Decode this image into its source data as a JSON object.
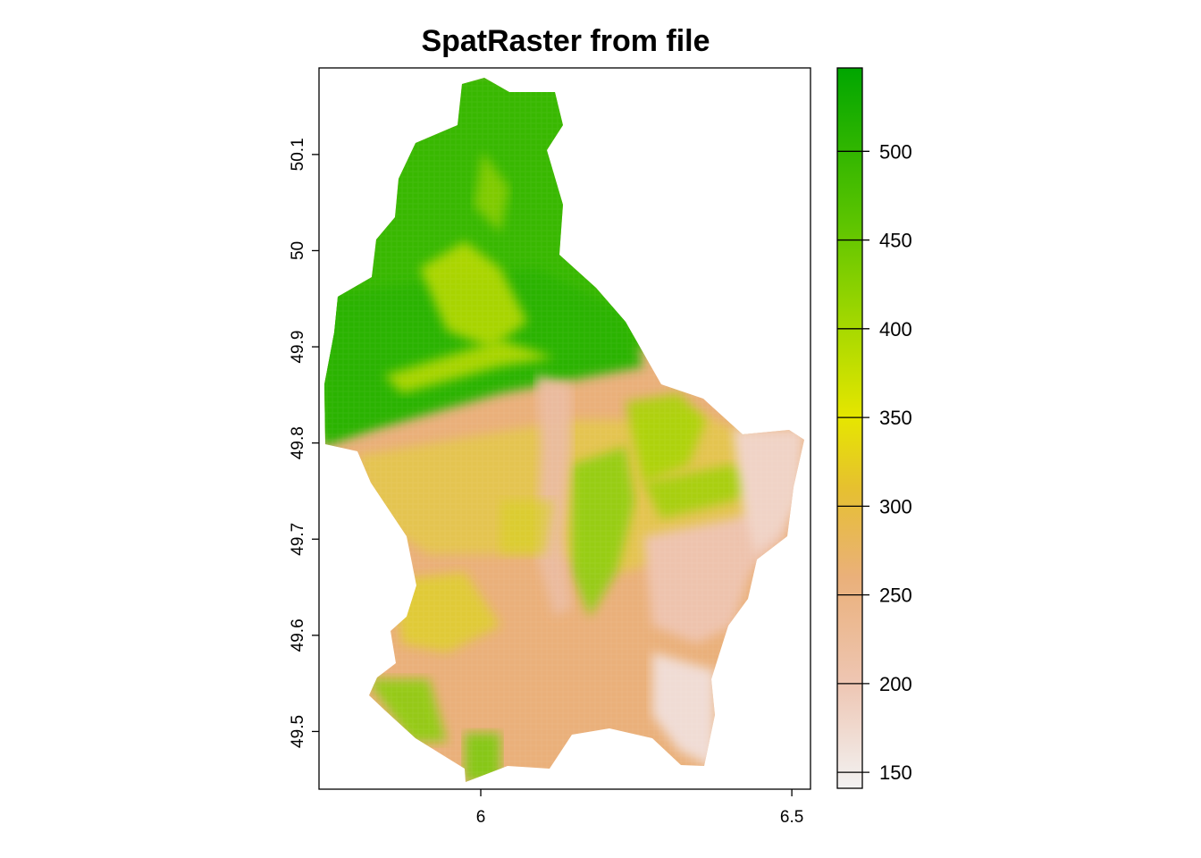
{
  "title": "SpatRaster from file",
  "map": {
    "x_ticks": [
      {
        "value": 6,
        "label": "6"
      },
      {
        "value": 6.5,
        "label": "6.5"
      }
    ],
    "y_ticks": [
      {
        "value": 49.5,
        "label": "49.5"
      },
      {
        "value": 49.6,
        "label": "49.6"
      },
      {
        "value": 49.7,
        "label": "49.7"
      },
      {
        "value": 49.8,
        "label": "49.8"
      },
      {
        "value": 49.9,
        "label": "49.9"
      },
      {
        "value": 50,
        "label": "50"
      },
      {
        "value": 50.1,
        "label": "50.1"
      }
    ],
    "x_range": [
      5.74,
      6.53
    ],
    "y_range": [
      49.44,
      50.19
    ],
    "no_data_color": "#ffffff"
  },
  "legend": {
    "range": [
      141,
      547
    ],
    "ticks": [
      {
        "value": 150,
        "label": "150"
      },
      {
        "value": 200,
        "label": "200"
      },
      {
        "value": 250,
        "label": "250"
      },
      {
        "value": 300,
        "label": "300"
      },
      {
        "value": 350,
        "label": "350"
      },
      {
        "value": 400,
        "label": "400"
      },
      {
        "value": 450,
        "label": "450"
      },
      {
        "value": 500,
        "label": "500"
      }
    ],
    "color_stops": [
      {
        "value": 141,
        "color": "#f2f2f2"
      },
      {
        "value": 200,
        "color": "#eec6b3"
      },
      {
        "value": 260,
        "color": "#eab07a"
      },
      {
        "value": 310,
        "color": "#e6c030"
      },
      {
        "value": 350,
        "color": "#e6e600"
      },
      {
        "value": 400,
        "color": "#a7d900"
      },
      {
        "value": 460,
        "color": "#5cc400"
      },
      {
        "value": 547,
        "color": "#00a600"
      }
    ]
  }
}
